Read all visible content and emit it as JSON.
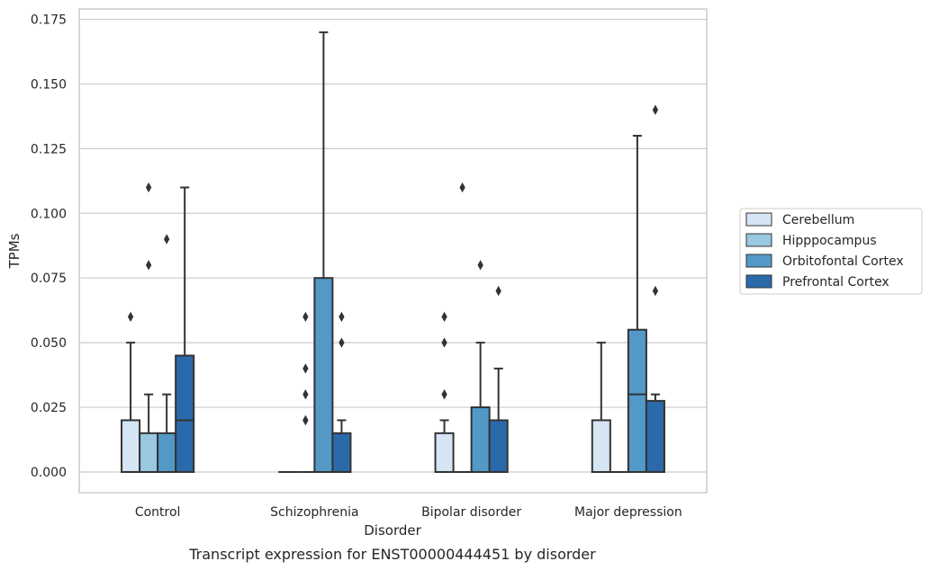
{
  "chart_data": {
    "type": "box",
    "title": "",
    "caption": "Transcript expression for ENST00000444451 by disorder",
    "xlabel": "Disorder",
    "ylabel": "TPMs",
    "ylim": [
      -0.008,
      0.179
    ],
    "yticks": [
      0.0,
      0.025,
      0.05,
      0.075,
      0.1,
      0.125,
      0.15,
      0.175
    ],
    "ytick_labels": [
      "0.000",
      "0.025",
      "0.050",
      "0.075",
      "0.100",
      "0.125",
      "0.150",
      "0.175"
    ],
    "grid": "horizontal",
    "legend_position": "right",
    "categories": [
      "Control",
      "Schizophrenia",
      "Bipolar disorder",
      "Major depression"
    ],
    "series": [
      {
        "name": "Cerebellum",
        "color": "#d6e5f4",
        "boxes": [
          {
            "q1": 0.0,
            "median": 0.0,
            "q3": 0.02,
            "whisker_low": 0.0,
            "whisker_high": 0.05,
            "outliers": [
              0.06
            ]
          },
          {
            "q1": 0.0,
            "median": 0.0,
            "q3": 0.0,
            "whisker_low": 0.0,
            "whisker_high": 0.0,
            "outliers": []
          },
          {
            "q1": 0.0,
            "median": 0.0,
            "q3": 0.015,
            "whisker_low": 0.0,
            "whisker_high": 0.02,
            "outliers": [
              0.03,
              0.05,
              0.06
            ]
          },
          {
            "q1": 0.0,
            "median": 0.0,
            "q3": 0.02,
            "whisker_low": 0.0,
            "whisker_high": 0.05,
            "outliers": []
          }
        ]
      },
      {
        "name": "Hipppocampus",
        "color": "#9ac8e0",
        "boxes": [
          {
            "q1": 0.0,
            "median": 0.0,
            "q3": 0.015,
            "whisker_low": 0.0,
            "whisker_high": 0.03,
            "outliers": [
              0.08,
              0.11
            ]
          },
          {
            "q1": 0.0,
            "median": 0.0,
            "q3": 0.0,
            "whisker_low": 0.0,
            "whisker_high": 0.0,
            "outliers": [
              0.02,
              0.06
            ]
          },
          {
            "q1": 0.0,
            "median": 0.0,
            "q3": 0.0,
            "whisker_low": 0.0,
            "whisker_high": 0.0,
            "outliers": [
              0.11
            ]
          },
          {
            "q1": 0.0,
            "median": 0.0,
            "q3": 0.0,
            "whisker_low": 0.0,
            "whisker_high": 0.0,
            "outliers": []
          }
        ]
      },
      {
        "name": "Orbitofontal Cortex",
        "color": "#5299c8",
        "boxes": [
          {
            "q1": 0.0,
            "median": 0.0,
            "q3": 0.015,
            "whisker_low": 0.0,
            "whisker_high": 0.03,
            "outliers": [
              0.09
            ]
          },
          {
            "q1": 0.0,
            "median": 0.0,
            "q3": 0.075,
            "whisker_low": 0.0,
            "whisker_high": 0.17,
            "outliers": []
          },
          {
            "q1": 0.0,
            "median": 0.0,
            "q3": 0.025,
            "whisker_low": 0.0,
            "whisker_high": 0.05,
            "outliers": [
              0.08
            ]
          },
          {
            "q1": 0.0,
            "median": 0.03,
            "q3": 0.055,
            "whisker_low": 0.0,
            "whisker_high": 0.13,
            "outliers": []
          }
        ]
      },
      {
        "name": "Prefrontal Cortex",
        "color": "#2a6aab",
        "boxes": [
          {
            "q1": 0.0,
            "median": 0.02,
            "q3": 0.045,
            "whisker_low": 0.0,
            "whisker_high": 0.11,
            "outliers": []
          },
          {
            "q1": 0.0,
            "median": 0.0,
            "q3": 0.015,
            "whisker_low": 0.0,
            "whisker_high": 0.02,
            "outliers": [
              0.05,
              0.06
            ]
          },
          {
            "q1": 0.0,
            "median": 0.0,
            "q3": 0.02,
            "whisker_low": 0.0,
            "whisker_high": 0.04,
            "outliers": [
              0.07
            ]
          },
          {
            "q1": 0.0,
            "median": 0.0,
            "q3": 0.0275,
            "whisker_low": 0.0,
            "whisker_high": 0.03,
            "outliers": [
              0.07,
              0.14
            ]
          }
        ]
      }
    ],
    "extra_outliers": [
      {
        "category_index": 1,
        "series_index": 1,
        "values": [
          0.02,
          0.03,
          0.04
        ]
      }
    ]
  }
}
